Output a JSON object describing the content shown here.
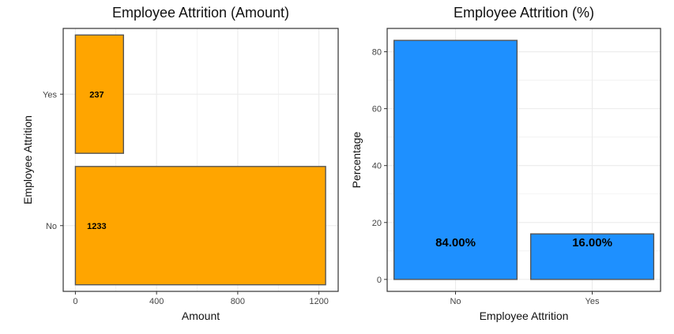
{
  "chart_data": [
    {
      "type": "bar",
      "orientation": "horizontal",
      "title": "Employee Attrition (Amount)",
      "xlabel": "Amount",
      "ylabel": "Employee Attrition",
      "categories": [
        "No",
        "Yes"
      ],
      "values": [
        1233,
        237
      ],
      "data_labels": [
        "1233",
        "237"
      ],
      "xlim": [
        -60,
        1295
      ],
      "xticks": [
        0,
        400,
        800,
        1200
      ],
      "bar_color": "#FFA500",
      "grid": true,
      "legend": "none"
    },
    {
      "type": "bar",
      "orientation": "vertical",
      "title": "Employee Attrition (%)",
      "xlabel": "Employee Attrition",
      "ylabel": "Percentage",
      "categories": [
        "No",
        "Yes"
      ],
      "values": [
        84.0,
        16.0
      ],
      "data_labels": [
        "84.00%",
        "16.00%"
      ],
      "ylim": [
        -4.2,
        88.2
      ],
      "yticks": [
        0,
        20,
        40,
        60,
        80
      ],
      "bar_color": "#1E90FF",
      "grid": true,
      "legend": "none"
    }
  ],
  "colors": {
    "panel_border": "#333333",
    "grid": "#EBEBEB",
    "bar_outline": "#555555"
  }
}
